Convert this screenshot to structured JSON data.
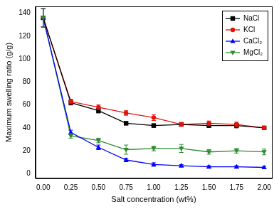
{
  "chart_data": {
    "type": "line",
    "x_label": "Salt concentration (wt%)",
    "y_label": "Maximum swelling ratio (g/g)",
    "x": [
      0,
      0.25,
      0.5,
      0.75,
      1.0,
      1.25,
      1.5,
      1.75,
      2.0
    ],
    "series": [
      {
        "name": "NaCl",
        "color": "#000000",
        "marker": "square",
        "values": [
          136,
          62,
          55,
          44,
          42,
          43,
          42,
          42,
          40
        ],
        "errors": [
          8,
          2,
          2,
          1.5,
          1.5,
          1.5,
          1.5,
          2,
          1.5
        ]
      },
      {
        "name": "KCl",
        "color": "#e3120b",
        "marker": "circle",
        "values": [
          136,
          63,
          58,
          53,
          49,
          43,
          44,
          43,
          40
        ],
        "errors": [
          8,
          2,
          2,
          2,
          2.5,
          1.5,
          2,
          2,
          1.5
        ]
      },
      {
        "name": "CaCl₂",
        "color": "#0000ff",
        "marker": "triangle",
        "values": [
          136,
          36,
          23,
          12,
          8,
          7,
          6,
          6,
          5.5
        ],
        "errors": [
          8,
          2,
          2,
          1.5,
          1.5,
          1,
          1,
          1,
          1
        ]
      },
      {
        "name": "MgCl₂",
        "color": "#2e8b2e",
        "marker": "triangle_down",
        "values": [
          136,
          33,
          29,
          21,
          22,
          22,
          19,
          20,
          19
        ],
        "errors": [
          8,
          2,
          2,
          4,
          2,
          3.5,
          2,
          2,
          2.5
        ]
      }
    ],
    "xlim": [
      -0.07,
      2.07
    ],
    "xticks": [
      {
        "value": 0,
        "label": "0.00"
      },
      {
        "value": 0.25,
        "label": "0.25"
      },
      {
        "value": 0.5,
        "label": "0.50"
      },
      {
        "value": 0.75,
        "label": "0.75"
      },
      {
        "value": 1.0,
        "label": "1.00"
      },
      {
        "value": 1.25,
        "label": "1.25"
      },
      {
        "value": 1.5,
        "label": "1.50"
      },
      {
        "value": 1.75,
        "label": "1.75"
      },
      {
        "value": 2.0,
        "label": "2.00"
      }
    ],
    "ylim": [
      -4,
      146
    ],
    "yticks": [
      0,
      20,
      40,
      60,
      80,
      100,
      120,
      140
    ],
    "grid": false,
    "legend": "top-right"
  }
}
